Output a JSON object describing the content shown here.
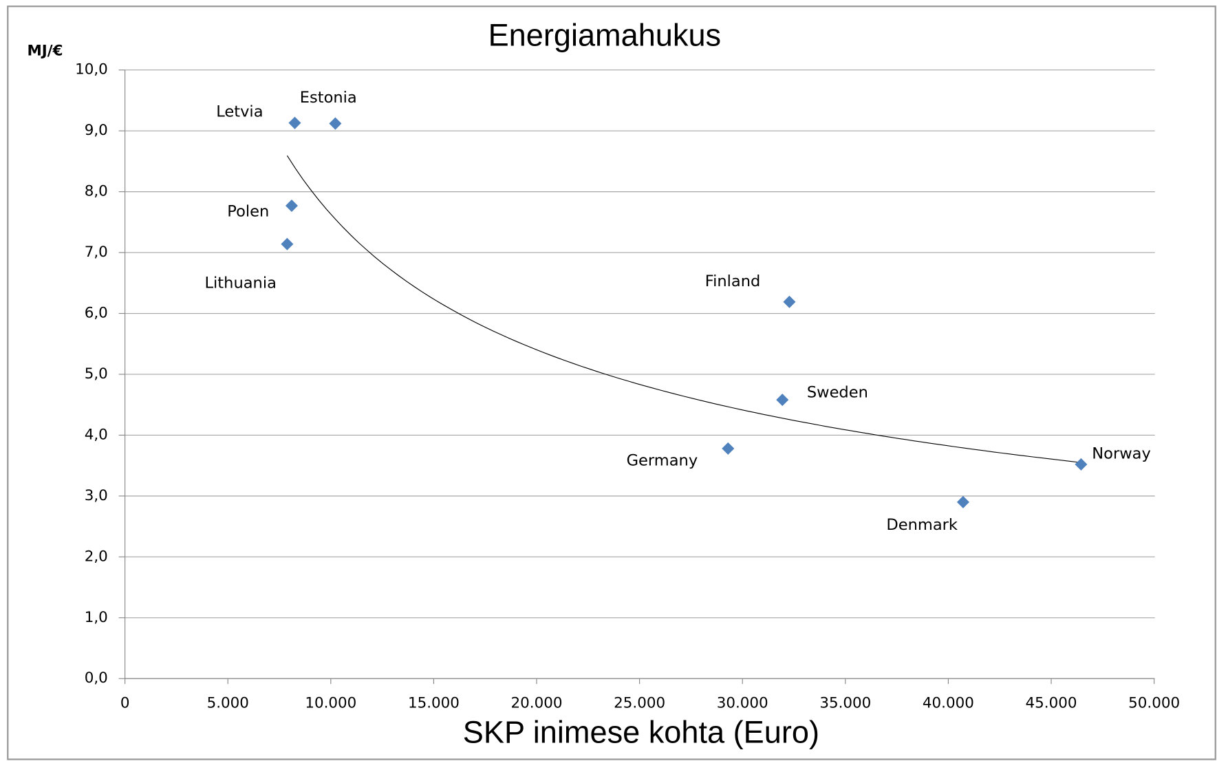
{
  "chart_data": {
    "type": "scatter",
    "title": "Energiamahukus",
    "x_label": "SKP inimese kohta (Euro)",
    "y_label": "MJ/€",
    "point_labels": [
      "Letvia",
      "Estonia",
      "Polen",
      "Lithuania",
      "Finland",
      "Sweden",
      "Germany",
      "Denmark",
      "Norway"
    ],
    "x": [
      8250,
      10220,
      8100,
      7880,
      32280,
      31940,
      29300,
      40720,
      46450
    ],
    "values": [
      9.13,
      9.12,
      7.77,
      7.14,
      6.19,
      4.58,
      3.78,
      2.9,
      3.52
    ],
    "color": "#4f81bd",
    "trendline": "power",
    "xlim": [
      0,
      50000
    ],
    "xticks": [
      0,
      {
        "value": 5000,
        "label": "5.000"
      },
      {
        "value": 10000,
        "label": "10.000"
      },
      {
        "value": 15000,
        "label": "15.000"
      },
      {
        "value": 20000,
        "label": "20.000"
      },
      {
        "value": 25000,
        "label": "25.000"
      },
      {
        "value": 30000,
        "label": "30.000"
      },
      {
        "value": 35000,
        "label": "35.000"
      },
      {
        "value": 40000,
        "label": "40.000"
      },
      {
        "value": 45000,
        "label": "45.000"
      },
      {
        "value": 50000,
        "label": "50.000"
      }
    ],
    "ylim": [
      0,
      10
    ],
    "yticks": [
      {
        "value": 0,
        "label": "0,0"
      },
      {
        "value": 1,
        "label": "1,0"
      },
      {
        "value": 2,
        "label": "2,0"
      },
      {
        "value": 3,
        "label": "3,0"
      },
      {
        "value": 4,
        "label": "4,0"
      },
      {
        "value": 5,
        "label": "5,0"
      },
      {
        "value": 6,
        "label": "6,0"
      },
      {
        "value": 7,
        "label": "7,0"
      },
      {
        "value": 8,
        "label": "8,0"
      },
      {
        "value": 9,
        "label": "9,0"
      },
      {
        "value": 10,
        "label": "10,0"
      }
    ],
    "grid": true
  }
}
